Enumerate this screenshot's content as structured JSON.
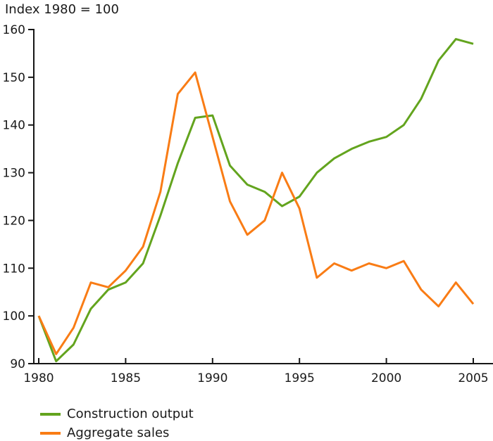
{
  "title": "Index 1980 = 100",
  "legend": [
    {
      "label": "Construction output",
      "color": "#63a41e"
    },
    {
      "label": "Aggregate sales",
      "color": "#f97c15"
    }
  ],
  "chart_data": {
    "type": "line",
    "title": "Index 1980 = 100",
    "x": [
      1980,
      1981,
      1982,
      1983,
      1984,
      1985,
      1986,
      1987,
      1988,
      1989,
      1990,
      1991,
      1992,
      1993,
      1994,
      1995,
      1996,
      1997,
      1998,
      1999,
      2000,
      2001,
      2002,
      2003,
      2004,
      2005
    ],
    "series": [
      {
        "name": "Construction output",
        "color": "#63a41e",
        "values": [
          100,
          90.5,
          94,
          101.5,
          105.5,
          107,
          111,
          121,
          132,
          141.5,
          142,
          131.5,
          127.5,
          126,
          123,
          125,
          130,
          133,
          135,
          136.5,
          137.5,
          140,
          145.5,
          153.5,
          158,
          157
        ]
      },
      {
        "name": "Aggregate sales",
        "color": "#f97c15",
        "values": [
          100,
          92,
          97.5,
          107,
          106,
          109.5,
          114.5,
          126,
          146.5,
          151,
          137.5,
          124,
          117,
          120,
          130,
          122.5,
          108,
          111,
          109.5,
          111,
          110,
          111.5,
          105.5,
          102,
          107,
          102.5
        ]
      }
    ],
    "xlabel": "",
    "ylabel": "",
    "xlim": [
      1980,
      2005
    ],
    "ylim": [
      90,
      160
    ],
    "xticks": [
      1980,
      1985,
      1990,
      1995,
      2000,
      2005
    ],
    "yticks": [
      90,
      100,
      110,
      120,
      130,
      140,
      150,
      160
    ],
    "grid": false,
    "legend_position": "bottom-left",
    "axis_color": "#161616",
    "line_width": 3
  }
}
